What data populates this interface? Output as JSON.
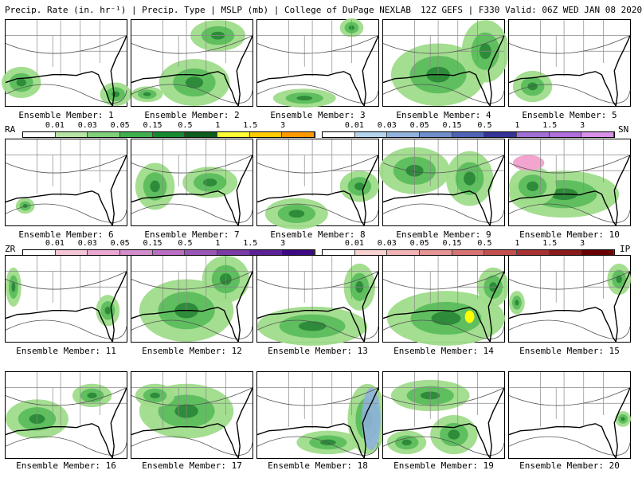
{
  "header": {
    "left": "Precip. Rate (in. hr⁻¹) | Precip. Type | MSLP (mb) | College of DuPage NEXLAB",
    "right": "12Z GEFS | F330 Valid: 06Z WED JAN 08 2020"
  },
  "members": [
    {
      "label": "Ensemble Member: 1",
      "blobs": [
        [
          20,
          80,
          25,
          20
        ],
        [
          140,
          95,
          20,
          15
        ]
      ]
    },
    {
      "label": "Ensemble Member: 2",
      "blobs": [
        [
          80,
          80,
          45,
          30
        ],
        [
          110,
          20,
          35,
          20
        ],
        [
          20,
          95,
          20,
          10
        ]
      ]
    },
    {
      "label": "Ensemble Member: 3",
      "blobs": [
        [
          60,
          100,
          40,
          12
        ],
        [
          120,
          10,
          15,
          12
        ]
      ]
    },
    {
      "label": "Ensemble Member: 4",
      "blobs": [
        [
          70,
          70,
          60,
          40
        ],
        [
          130,
          40,
          30,
          40
        ]
      ]
    },
    {
      "label": "Ensemble Member: 5",
      "blobs": [
        [
          30,
          85,
          25,
          20
        ]
      ]
    },
    {
      "label": "Ensemble Member: 6",
      "blobs": [
        [
          25,
          85,
          12,
          10
        ]
      ]
    },
    {
      "label": "Ensemble Member: 7",
      "blobs": [
        [
          30,
          60,
          25,
          30
        ],
        [
          100,
          55,
          35,
          20
        ]
      ]
    },
    {
      "label": "Ensemble Member: 8",
      "blobs": [
        [
          50,
          95,
          40,
          20
        ],
        [
          130,
          60,
          25,
          20
        ]
      ]
    },
    {
      "label": "Ensemble Member: 9",
      "blobs": [
        [
          40,
          40,
          45,
          30
        ],
        [
          110,
          50,
          30,
          35
        ]
      ]
    },
    {
      "label": "Ensemble Member: 10",
      "blobs": [
        [
          70,
          70,
          70,
          30
        ],
        [
          30,
          60,
          30,
          25
        ]
      ]
    },
    {
      "label": "Ensemble Member: 11",
      "blobs": [
        [
          10,
          40,
          10,
          25
        ],
        [
          130,
          70,
          15,
          20
        ]
      ]
    },
    {
      "label": "Ensemble Member: 12",
      "blobs": [
        [
          70,
          70,
          60,
          40
        ],
        [
          120,
          30,
          30,
          30
        ]
      ]
    },
    {
      "label": "Ensemble Member: 13",
      "blobs": [
        [
          70,
          90,
          70,
          25
        ],
        [
          130,
          40,
          20,
          30
        ]
      ]
    },
    {
      "label": "Ensemble Member: 14",
      "blobs": [
        [
          80,
          80,
          75,
          35
        ],
        [
          140,
          40,
          20,
          25
        ]
      ]
    },
    {
      "label": "Ensemble Member: 15",
      "blobs": [
        [
          10,
          60,
          10,
          15
        ],
        [
          140,
          30,
          15,
          20
        ]
      ]
    },
    {
      "label": "Ensemble Member: 16",
      "blobs": [
        [
          40,
          60,
          40,
          25
        ],
        [
          110,
          30,
          25,
          15
        ]
      ]
    },
    {
      "label": "Ensemble Member: 17",
      "blobs": [
        [
          70,
          50,
          60,
          35
        ],
        [
          30,
          30,
          25,
          15
        ]
      ]
    },
    {
      "label": "Ensemble Member: 18",
      "blobs": [
        [
          140,
          60,
          25,
          45
        ],
        [
          90,
          90,
          40,
          15
        ]
      ]
    },
    {
      "label": "Ensemble Member: 19",
      "blobs": [
        [
          60,
          30,
          50,
          20
        ],
        [
          30,
          90,
          25,
          15
        ],
        [
          90,
          80,
          30,
          25
        ]
      ]
    },
    {
      "label": "Ensemble Member: 20",
      "blobs": [
        [
          145,
          60,
          10,
          10
        ]
      ]
    }
  ],
  "legends": {
    "ra": {
      "tag": "RA",
      "labels": [
        "0.01",
        "0.03",
        "0.05",
        "0.15",
        "0.5",
        "1",
        "1.5",
        "3"
      ],
      "colors": [
        "#ffffff",
        "#b6e4a5",
        "#7fd07a",
        "#3fb04e",
        "#168a2e",
        "#0b5e1c",
        "#ffff33",
        "#ffcc00",
        "#ff9900"
      ]
    },
    "sn": {
      "tag": "SN",
      "labels": [
        "0.01",
        "0.03",
        "0.05",
        "0.15",
        "0.5",
        "1",
        "1.5",
        "3"
      ],
      "colors": [
        "#ffffff",
        "#b4d4ee",
        "#8fb3dc",
        "#6f8fcc",
        "#4f63b8",
        "#333399",
        "#a26fd6",
        "#b06fdc",
        "#d88fe6"
      ]
    },
    "zr": {
      "tag": "ZR",
      "labels": [
        "0.01",
        "0.03",
        "0.05",
        "0.15",
        "0.5",
        "1",
        "1.5",
        "3"
      ],
      "colors": [
        "#ffffff",
        "#f7c6d6",
        "#e9a9d3",
        "#d38ccc",
        "#bb6fc3",
        "#9a55b6",
        "#7c3aa6",
        "#5c2196",
        "#3d0a84"
      ]
    },
    "ip": {
      "tag": "IP",
      "labels": [
        "0.01",
        "0.03",
        "0.05",
        "0.15",
        "0.5",
        "1",
        "1.5",
        "3"
      ],
      "colors": [
        "#ffffff",
        "#fad2d2",
        "#f2b4b4",
        "#e69595",
        "#d87474",
        "#c44f4f",
        "#a83232",
        "#8b1a1a",
        "#6b0000"
      ]
    }
  },
  "colors": {
    "green_light": "#9fdc8a",
    "green_mid": "#5fbf5f",
    "green_dark": "#2e8b3a",
    "yellow": "#ffff00",
    "blue": "#8fb3dc",
    "pink": "#f2a6cf"
  }
}
